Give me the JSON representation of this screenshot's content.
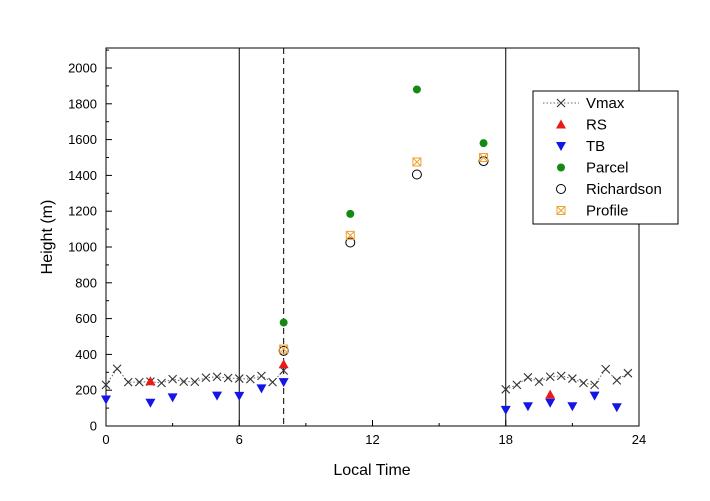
{
  "chart_data": {
    "type": "scatter",
    "title": "",
    "xlabel": "Local Time",
    "ylabel": "Height (m)",
    "xlim": [
      0,
      24
    ],
    "ylim": [
      0,
      2100
    ],
    "x_ticks": [
      0,
      6,
      12,
      18,
      24
    ],
    "y_ticks": [
      0,
      200,
      400,
      600,
      800,
      1000,
      1200,
      1400,
      1600,
      1800,
      2000
    ],
    "grid": false,
    "legend_position": "top-right",
    "vertical_lines": [
      {
        "x": 6,
        "style": "solid"
      },
      {
        "x": 8,
        "style": "dashed"
      },
      {
        "x": 18,
        "style": "solid"
      }
    ],
    "series": [
      {
        "name": "Vmax",
        "marker": "x",
        "color": "#333333",
        "line": "dotted",
        "x": [
          0,
          0.5,
          1,
          1.5,
          2,
          2.5,
          3,
          3.5,
          4,
          4.5,
          5,
          5.5,
          6,
          6.5,
          7,
          7.5,
          8
        ],
        "y": [
          230,
          320,
          245,
          245,
          248,
          240,
          262,
          248,
          247,
          270,
          275,
          268,
          265,
          262,
          280,
          245,
          310
        ]
      },
      {
        "name": "Vmax",
        "marker": "x",
        "color": "#333333",
        "line": "dotted",
        "x": [
          18,
          18.5,
          19,
          19.5,
          20,
          20.5,
          21,
          21.5,
          22,
          22.5,
          23,
          23.5
        ],
        "y": [
          205,
          230,
          272,
          248,
          275,
          280,
          265,
          240,
          230,
          318,
          255,
          295
        ]
      },
      {
        "name": "RS",
        "marker": "triangle-up",
        "color": "#e81b1b",
        "x": [
          2,
          8,
          20
        ],
        "y": [
          250,
          345,
          175
        ]
      },
      {
        "name": "TB",
        "marker": "triangle-down",
        "color": "#1515e6",
        "x": [
          0,
          2,
          3,
          5,
          6,
          7,
          8,
          18,
          19,
          20,
          21,
          22,
          23
        ],
        "y": [
          148,
          130,
          160,
          170,
          168,
          210,
          245,
          90,
          110,
          130,
          110,
          170,
          105
        ]
      },
      {
        "name": "Parcel",
        "marker": "circle-filled",
        "color": "#138a13",
        "x": [
          8,
          11,
          14,
          17
        ],
        "y": [
          578,
          1185,
          1880,
          1580
        ]
      },
      {
        "name": "Richardson",
        "marker": "circle-open",
        "color": "#000000",
        "x": [
          8,
          11,
          14,
          17
        ],
        "y": [
          420,
          1025,
          1405,
          1480
        ]
      },
      {
        "name": "Profile",
        "marker": "square-x",
        "color": "#f0a030",
        "x": [
          8,
          11,
          14,
          17
        ],
        "y": [
          430,
          1065,
          1475,
          1500
        ]
      }
    ],
    "legend": [
      {
        "label": "Vmax",
        "marker": "x",
        "color": "#333333"
      },
      {
        "label": "RS",
        "marker": "triangle-up",
        "color": "#e81b1b"
      },
      {
        "label": "TB",
        "marker": "triangle-down",
        "color": "#1515e6"
      },
      {
        "label": "Parcel",
        "marker": "circle-filled",
        "color": "#138a13"
      },
      {
        "label": "Richardson",
        "marker": "circle-open",
        "color": "#000000"
      },
      {
        "label": "Profile",
        "marker": "square-x",
        "color": "#f0a030"
      }
    ]
  }
}
